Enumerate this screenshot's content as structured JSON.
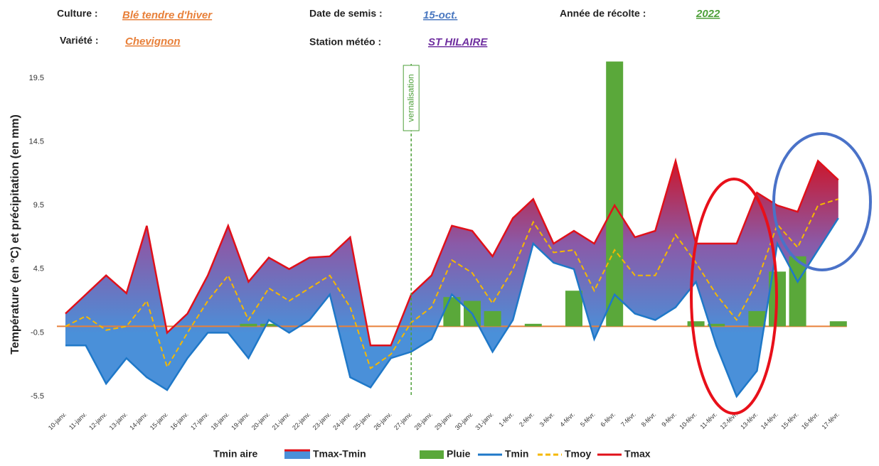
{
  "header": {
    "culture_label": "Culture :",
    "culture": "Blé tendre d'hiver",
    "variete_label": "Variété :",
    "variete": "Chevignon",
    "semis_label": "Date de semis :",
    "semis": "15-oct.",
    "station_label": "Station météo :",
    "station": "ST HILAIRE",
    "recolte_label": "Année de récolte :",
    "recolte": "2022"
  },
  "chart_data": {
    "type": "combo",
    "ylabel": "Température (en °C) et précipitation (en mm)",
    "categories": [
      "10-janv.",
      "11-janv.",
      "12-janv.",
      "13-janv.",
      "14-janv.",
      "15-janv.",
      "16-janv.",
      "17-janv.",
      "18-janv.",
      "19-janv.",
      "20-janv.",
      "21-janv.",
      "22-janv.",
      "23-janv.",
      "24-janv.",
      "25-janv.",
      "26-janv.",
      "27-janv.",
      "28-janv.",
      "29-janv.",
      "30-janv.",
      "31-janv.",
      "1-févr.",
      "2-févr.",
      "3-févr.",
      "4-févr.",
      "5-févr.",
      "6-févr.",
      "7-févr.",
      "8-févr.",
      "9-févr.",
      "10-févr.",
      "11-févr.",
      "12-févr.",
      "13-févr.",
      "14-févr.",
      "15-févr.",
      "16-févr.",
      "17-févr."
    ],
    "ylim": [
      -5.5,
      21
    ],
    "yticks": [
      -5.5,
      -0.5,
      4.5,
      9.5,
      14.5,
      19.5
    ],
    "annotations": [
      {
        "label": "vernalisation",
        "category": "27-janv."
      }
    ],
    "areas": [
      {
        "name": "Tmin aire",
        "color": "#4a90d9"
      },
      {
        "name": "Tmax-Tmin",
        "color": "#c0203a"
      }
    ],
    "series": [
      {
        "name": "Pluie",
        "kind": "bar",
        "color": "#5aa83a",
        "values": [
          0,
          0,
          0,
          0,
          0,
          0,
          0,
          0,
          0,
          0.2,
          0.2,
          0,
          0,
          0,
          0,
          0,
          0,
          0,
          0,
          2.3,
          2.0,
          1.2,
          0,
          0.2,
          0,
          2.8,
          0,
          20.8,
          0,
          0,
          0,
          0.4,
          0.2,
          0,
          1.2,
          4.3,
          5.5,
          0,
          0.4
        ]
      },
      {
        "name": "Tmin",
        "kind": "line",
        "color": "#1f78c8",
        "values": [
          -1.5,
          -1.5,
          -4.5,
          -2.5,
          -4.0,
          -5.0,
          -2.5,
          -0.5,
          -0.5,
          -2.5,
          0.5,
          -0.5,
          0.5,
          2.5,
          -4.0,
          -4.8,
          -2.5,
          -2.0,
          -1.0,
          2.5,
          1.0,
          -2.0,
          0.5,
          6.5,
          5.0,
          4.5,
          -1.0,
          2.5,
          1.0,
          0.5,
          1.5,
          3.5,
          -1.5,
          -5.5,
          -3.5,
          6.5,
          3.5,
          6.0,
          8.5
        ]
      },
      {
        "name": "Tmoy",
        "kind": "dash",
        "color": "#f5b800",
        "values": [
          0,
          0.8,
          -0.3,
          0,
          2.0,
          -3.2,
          -0.5,
          2.0,
          4.0,
          0.5,
          3.0,
          2.0,
          3.0,
          4.0,
          1.5,
          -3.3,
          -2.2,
          0.3,
          1.5,
          5.2,
          4.2,
          1.8,
          4.5,
          8.2,
          5.8,
          6.0,
          2.8,
          6.0,
          4.0,
          4.0,
          7.2,
          5.0,
          2.5,
          0.5,
          3.5,
          8.0,
          6.2,
          9.5,
          10.0
        ]
      },
      {
        "name": "Tmax",
        "kind": "line",
        "color": "#e0101a",
        "values": [
          1.0,
          2.5,
          4.0,
          2.6,
          7.9,
          -0.5,
          1.0,
          4.0,
          7.9,
          3.5,
          5.4,
          4.5,
          5.4,
          5.5,
          7.0,
          -1.5,
          -1.5,
          2.5,
          4.0,
          7.9,
          7.5,
          5.5,
          8.5,
          10.0,
          6.5,
          7.5,
          6.5,
          9.5,
          7.0,
          7.5,
          13.0,
          6.5,
          6.5,
          6.5,
          10.5,
          9.5,
          9.0,
          13.0,
          11.5
        ]
      }
    ]
  }
}
